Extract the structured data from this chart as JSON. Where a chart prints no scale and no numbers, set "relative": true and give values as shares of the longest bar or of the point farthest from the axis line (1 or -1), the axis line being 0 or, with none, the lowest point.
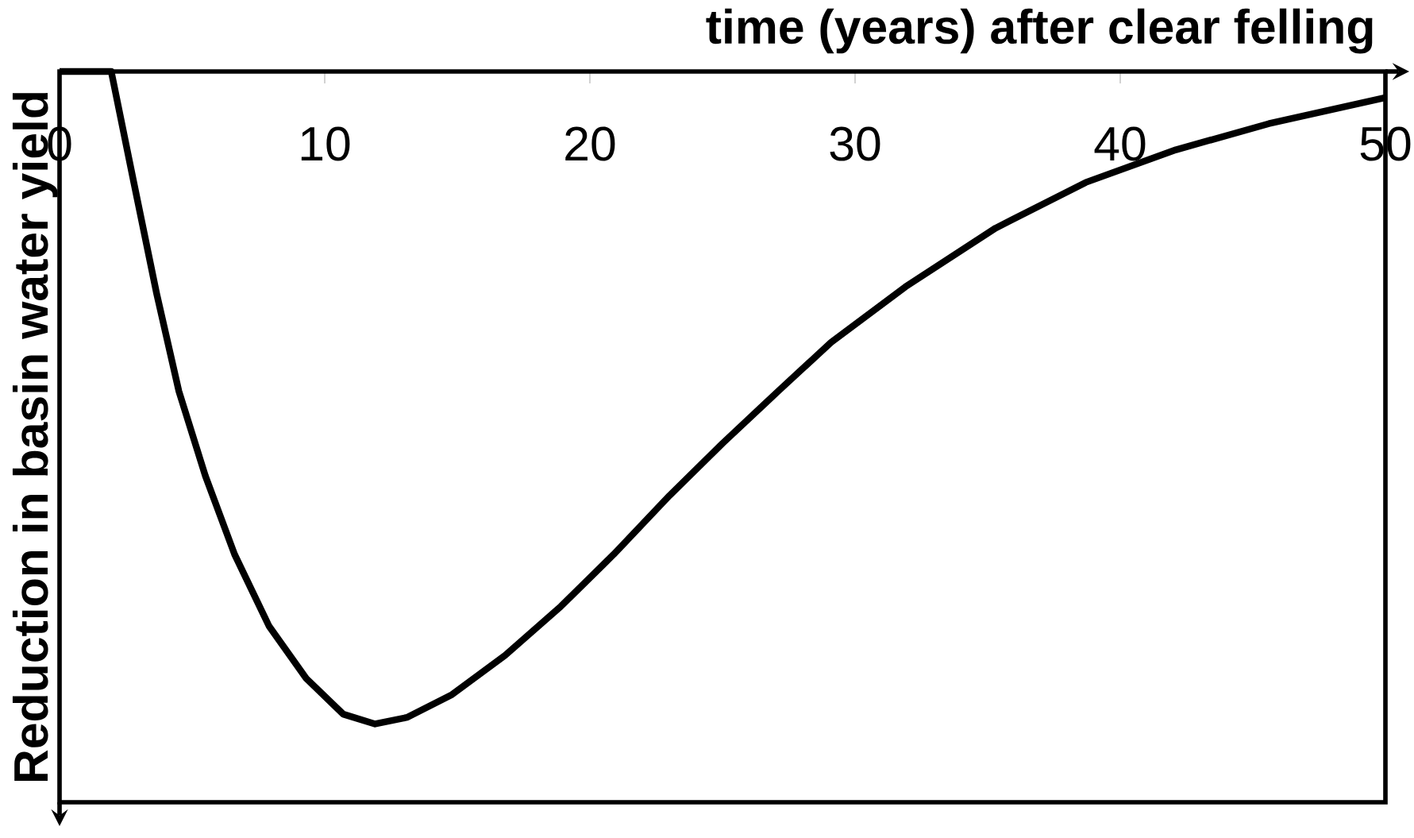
{
  "chart_data": {
    "type": "line",
    "relative": true,
    "xlabel": "time (years) after clear felling",
    "ylabel": "Reduction in basin water yield",
    "xlim": [
      0,
      50
    ],
    "xticks": [
      0,
      10,
      20,
      30,
      40,
      50
    ],
    "series": [
      {
        "color": "#000000",
        "x": [
          0,
          1.95,
          2.8,
          3.66,
          4.5,
          5.5,
          6.6,
          7.9,
          9.3,
          10.7,
          11.9,
          13.1,
          14.8,
          16.8,
          18.9,
          20.9,
          23.0,
          25.0,
          27.1,
          29.1,
          31.9,
          35.3,
          38.7,
          42.1,
          45.6,
          50
        ],
        "values": [
          0,
          0,
          -0.17,
          -0.34,
          -0.49,
          -0.62,
          -0.74,
          -0.85,
          -0.93,
          -0.985,
          -1.0,
          -0.99,
          -0.955,
          -0.895,
          -0.82,
          -0.74,
          -0.65,
          -0.57,
          -0.49,
          -0.415,
          -0.33,
          -0.24,
          -0.17,
          -0.12,
          -0.08,
          -0.04
        ]
      }
    ],
    "marker": "none",
    "line_style": "solid"
  }
}
